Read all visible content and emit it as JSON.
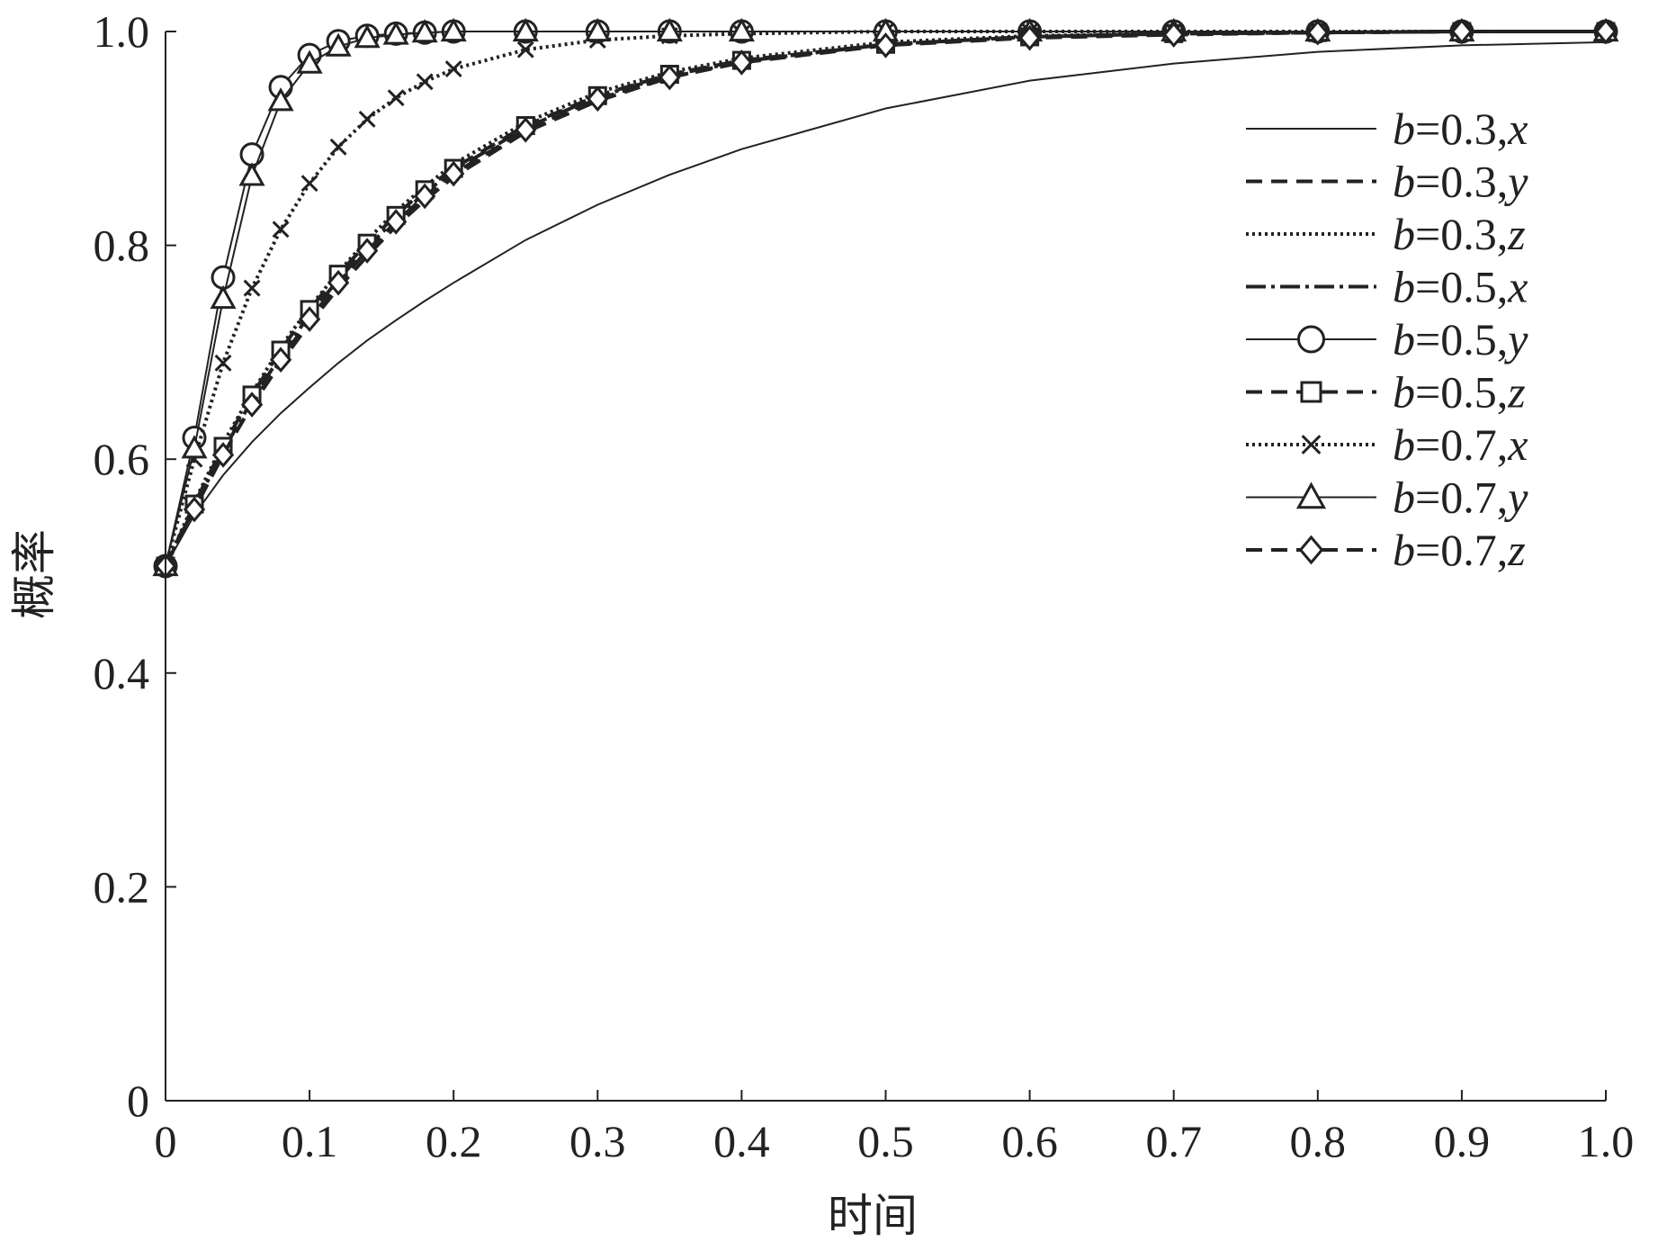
{
  "chart_data": {
    "type": "line",
    "title": "",
    "xlabel": "时间",
    "ylabel": "概率",
    "xlim": [
      0,
      1.0
    ],
    "ylim": [
      0,
      1.0
    ],
    "x_ticks": [
      "0",
      "0.1",
      "0.2",
      "0.3",
      "0.4",
      "0.5",
      "0.6",
      "0.7",
      "0.8",
      "0.9",
      "1.0"
    ],
    "y_ticks": [
      "0",
      "0.2",
      "0.4",
      "0.6",
      "0.8",
      "1.0"
    ],
    "grid": false,
    "legend_position": "top-right",
    "x": [
      0,
      0.02,
      0.04,
      0.06,
      0.08,
      0.1,
      0.12,
      0.14,
      0.16,
      0.18,
      0.2,
      0.25,
      0.3,
      0.35,
      0.4,
      0.5,
      0.6,
      0.7,
      0.8,
      0.9,
      1.0
    ],
    "series": [
      {
        "name": "b=0.3,x",
        "b": "b",
        "eq": "=0.3,",
        "v": "x",
        "line": "solid",
        "marker": "none",
        "values": [
          0.5,
          0.548,
          0.585,
          0.616,
          0.643,
          0.667,
          0.69,
          0.711,
          0.73,
          0.748,
          0.765,
          0.805,
          0.838,
          0.866,
          0.89,
          0.928,
          0.954,
          0.97,
          0.981,
          0.987,
          0.99
        ]
      },
      {
        "name": "b=0.3,y",
        "b": "b",
        "eq": "=0.3,",
        "v": "y",
        "line": "dashed",
        "marker": "none",
        "values": [
          0.5,
          0.555,
          0.605,
          0.65,
          0.69,
          0.727,
          0.76,
          0.79,
          0.818,
          0.842,
          0.864,
          0.906,
          0.935,
          0.957,
          0.972,
          0.988,
          0.995,
          0.998,
          0.999,
          1.0,
          1.0
        ]
      },
      {
        "name": "b=0.3,z",
        "b": "b",
        "eq": "=0.3,",
        "v": "z",
        "line": "dotted",
        "marker": "none",
        "values": [
          0.5,
          0.56,
          0.615,
          0.662,
          0.705,
          0.742,
          0.775,
          0.805,
          0.832,
          0.855,
          0.876,
          0.915,
          0.943,
          0.962,
          0.975,
          0.99,
          0.996,
          0.998,
          0.999,
          1.0,
          1.0
        ]
      },
      {
        "name": "b=0.5,x",
        "b": "b",
        "eq": "=0.5,",
        "v": "x",
        "line": "dashdot",
        "marker": "none",
        "values": [
          0.5,
          0.555,
          0.608,
          0.655,
          0.697,
          0.735,
          0.768,
          0.798,
          0.825,
          0.849,
          0.87,
          0.91,
          0.939,
          0.959,
          0.972,
          0.988,
          0.995,
          0.998,
          0.999,
          1.0,
          1.0
        ]
      },
      {
        "name": "b=0.5,y",
        "b": "b",
        "eq": "=0.5,",
        "v": "y",
        "line": "solid",
        "marker": "circle",
        "values": [
          0.5,
          0.62,
          0.77,
          0.885,
          0.948,
          0.978,
          0.991,
          0.996,
          0.998,
          0.999,
          1.0,
          1.0,
          1.0,
          1.0,
          1.0,
          1.0,
          1.0,
          1.0,
          1.0,
          1.0,
          1.0
        ]
      },
      {
        "name": "b=0.5,z",
        "b": "b",
        "eq": "=0.5,",
        "v": "z",
        "line": "dashed",
        "marker": "square",
        "values": [
          0.5,
          0.558,
          0.612,
          0.66,
          0.702,
          0.74,
          0.773,
          0.802,
          0.828,
          0.852,
          0.872,
          0.912,
          0.94,
          0.96,
          0.973,
          0.988,
          0.995,
          0.998,
          0.999,
          1.0,
          1.0
        ]
      },
      {
        "name": "b=0.7,x",
        "b": "b",
        "eq": "=0.7,",
        "v": "x",
        "line": "dotted",
        "marker": "x",
        "values": [
          0.5,
          0.6,
          0.69,
          0.76,
          0.815,
          0.858,
          0.892,
          0.918,
          0.938,
          0.953,
          0.965,
          0.983,
          0.992,
          0.996,
          0.998,
          1.0,
          1.0,
          1.0,
          1.0,
          1.0,
          1.0
        ]
      },
      {
        "name": "b=0.7,y",
        "b": "b",
        "eq": "=0.7,",
        "v": "y",
        "line": "solid",
        "marker": "triangle",
        "values": [
          0.5,
          0.61,
          0.75,
          0.865,
          0.935,
          0.97,
          0.986,
          0.994,
          0.997,
          0.999,
          1.0,
          1.0,
          1.0,
          1.0,
          1.0,
          1.0,
          1.0,
          1.0,
          1.0,
          1.0,
          1.0
        ]
      },
      {
        "name": "b=0.7,z",
        "b": "b",
        "eq": "=0.7,",
        "v": "z",
        "line": "dashed",
        "marker": "diamond",
        "values": [
          0.5,
          0.553,
          0.604,
          0.651,
          0.693,
          0.731,
          0.765,
          0.795,
          0.822,
          0.846,
          0.867,
          0.908,
          0.937,
          0.957,
          0.971,
          0.987,
          0.994,
          0.997,
          0.999,
          1.0,
          1.0
        ]
      }
    ]
  }
}
